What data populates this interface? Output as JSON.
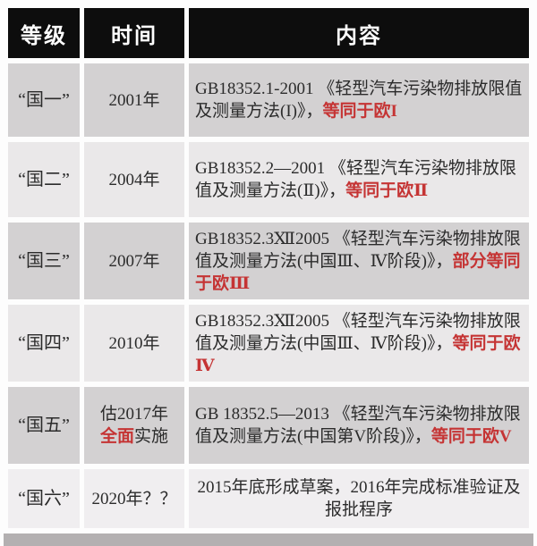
{
  "colors": {
    "header_bg": "#0d0d0d",
    "header_text": "#ffffff",
    "row_dark_bg": "#d3d1d2",
    "row_light_bg": "#eae8e9",
    "body_text": "#2b2b2b",
    "highlight_red": "#c53434",
    "footer_bar": "#b3b0b1",
    "page_bg": "#fdfdfd"
  },
  "header": {
    "columns": [
      "等级",
      "时间",
      "内容"
    ]
  },
  "rows": [
    {
      "level": "“国一”",
      "time1": "2001年",
      "time2_red": "",
      "time2_dark": "",
      "content_main": "GB18352.1-2001 《轻型汽车污染物排放限值及测量方法(I)》，",
      "content_red": "等同于欧I"
    },
    {
      "level": "“国二”",
      "time1": "2004年",
      "time2_red": "",
      "time2_dark": "",
      "content_main": "GB18352.2—2001 《轻型汽车污染物排放限值及测量方法(Ⅱ)》，",
      "content_red": "等同于欧Ⅱ"
    },
    {
      "level": "“国三”",
      "time1": "2007年",
      "time2_red": "",
      "time2_dark": "",
      "content_main": "GB18352.3Ⅻ2005 《轻型汽车污染物排放限值及测量方法(中国Ⅲ、Ⅳ阶段)》，",
      "content_red": "部分等同于欧Ⅲ"
    },
    {
      "level": "“国四”",
      "time1": "2010年",
      "time2_red": "",
      "time2_dark": "",
      "content_main": "GB18352.3Ⅻ2005 《轻型汽车污染物排放限值及测量方法(中国Ⅲ、Ⅳ阶段)》，",
      "content_red": "等同于欧Ⅳ"
    },
    {
      "level": "“国五”",
      "time1": "估2017年",
      "time2_red": "全面",
      "time2_dark": "实施",
      "content_main": "GB 18352.5—2013 《轻型汽车污染物排放限值及测量方法(中国第V阶段)》，",
      "content_red": "等同于欧V"
    },
    {
      "level": "“国六”",
      "time1": "2020年？？",
      "time2_red": "",
      "time2_dark": "",
      "content_main": "2015年底形成草案，2016年完成标准验证及报批程序",
      "content_red": ""
    }
  ],
  "chart_data": {
    "type": "table",
    "title": "中国轻型汽车排放标准等级与实施时间",
    "columns": [
      "等级",
      "时间",
      "内容"
    ],
    "rows": [
      [
        "“国一”",
        "2001年",
        "GB18352.1-2001 《轻型汽车污染物排放限值及测量方法(I)》，等同于欧I"
      ],
      [
        "“国二”",
        "2004年",
        "GB18352.2—2001 《轻型汽车污染物排放限值及测量方法(Ⅱ)》，等同于欧Ⅱ"
      ],
      [
        "“国三”",
        "2007年",
        "GB18352.3Ⅻ2005 《轻型汽车污染物排放限值及测量方法(中国Ⅲ、Ⅳ阶段)》，部分等同于欧Ⅲ"
      ],
      [
        "“国四”",
        "2010年",
        "GB18352.3Ⅻ2005 《轻型汽车污染物排放限值及测量方法(中国Ⅲ、Ⅳ阶段)》，等同于欧Ⅳ"
      ],
      [
        "“国五”",
        "估2017年全面实施",
        "GB 18352.5—2013 《轻型汽车污染物排放限值及测量方法(中国第V阶段)》，等同于欧V"
      ],
      [
        "“国六”",
        "2020年？？",
        "2015年底形成草案，2016年完成标准验证及报批程序"
      ]
    ]
  }
}
